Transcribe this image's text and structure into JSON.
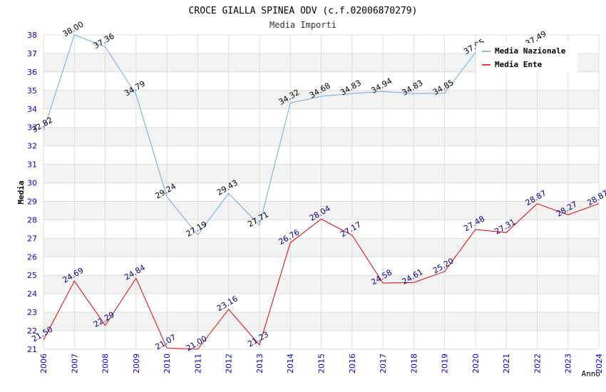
{
  "chart_data": {
    "type": "line",
    "title": "CROCE GIALLA SPINEA ODV (c.f.02006870279)",
    "subtitle": "Media Importi",
    "xlabel": "Anno",
    "ylabel": "Media",
    "ylim": [
      21,
      38
    ],
    "categories": [
      "2006",
      "2007",
      "2008",
      "2009",
      "2010",
      "2011",
      "2012",
      "2013",
      "2014",
      "2015",
      "2016",
      "2017",
      "2018",
      "2019",
      "2020",
      "2021",
      "2022",
      "2023",
      "2024"
    ],
    "series": [
      {
        "name": "Media Nazionale",
        "color": "#66aaee",
        "values": [
          32.82,
          38.0,
          37.36,
          34.79,
          29.24,
          27.19,
          29.43,
          27.71,
          34.32,
          34.68,
          34.83,
          34.94,
          34.83,
          34.85,
          37.05,
          null,
          37.49,
          null,
          null
        ],
        "labels": [
          "32.82",
          "38.00",
          "37.36",
          "34.79",
          "29.24",
          "27.19",
          "29.43",
          "27.71",
          "34.32",
          "34.68",
          "34.83",
          "34.94",
          "34.83",
          "34.85",
          "37.05",
          null,
          "37.49",
          null,
          null
        ]
      },
      {
        "name": "Media Ente",
        "color": "#dd0000",
        "values": [
          21.5,
          24.69,
          22.29,
          24.84,
          21.07,
          21.0,
          23.16,
          21.23,
          26.76,
          28.04,
          27.17,
          24.58,
          24.61,
          25.2,
          27.48,
          27.31,
          28.87,
          28.27,
          28.87
        ],
        "labels": [
          "21.50",
          "24.69",
          "22.29",
          "24.84",
          "21.07",
          "21.00",
          "23.16",
          "21.23",
          "26.76",
          "28.04",
          "27.17",
          "24.58",
          "24.61",
          "25.20",
          "27.48",
          "27.31",
          "28.87",
          "28.27",
          "28.87"
        ]
      }
    ],
    "legend_position": "top-right",
    "grid": true
  }
}
